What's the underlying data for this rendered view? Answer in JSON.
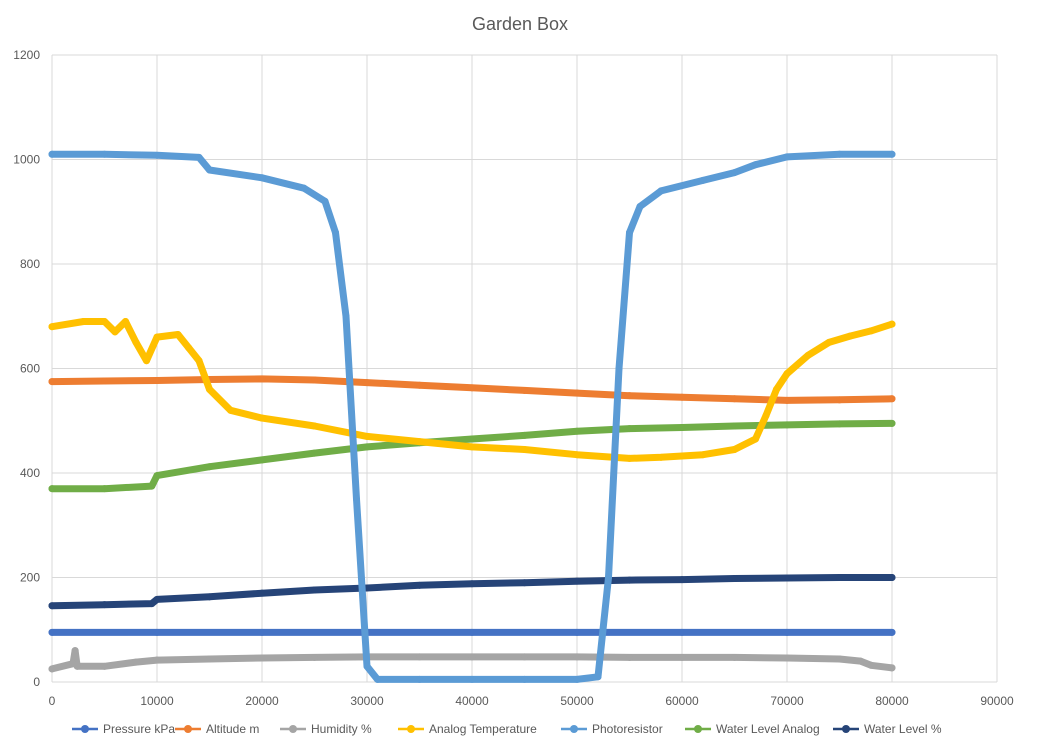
{
  "chart_data": {
    "type": "scatter",
    "title": "Garden Box",
    "xlabel": "",
    "ylabel": "",
    "xlim": [
      0,
      90000
    ],
    "ylim": [
      0,
      1200
    ],
    "x_ticks": [
      0,
      10000,
      20000,
      30000,
      40000,
      50000,
      60000,
      70000,
      80000,
      90000
    ],
    "y_ticks": [
      0,
      200,
      400,
      600,
      800,
      1000,
      1200
    ],
    "grid": true,
    "legend_position": "bottom",
    "series": [
      {
        "name": "Pressure kPa",
        "color": "#4472c4",
        "points": [
          [
            0,
            95
          ],
          [
            10000,
            95
          ],
          [
            20000,
            95
          ],
          [
            30000,
            95
          ],
          [
            40000,
            95
          ],
          [
            50000,
            95
          ],
          [
            60000,
            95
          ],
          [
            70000,
            95
          ],
          [
            80000,
            95
          ]
        ]
      },
      {
        "name": "Altitude m",
        "color": "#ed7d31",
        "points": [
          [
            0,
            575
          ],
          [
            5000,
            576
          ],
          [
            10000,
            577
          ],
          [
            15000,
            579
          ],
          [
            20000,
            580
          ],
          [
            25000,
            578
          ],
          [
            30000,
            573
          ],
          [
            35000,
            568
          ],
          [
            40000,
            563
          ],
          [
            45000,
            558
          ],
          [
            50000,
            553
          ],
          [
            55000,
            548
          ],
          [
            60000,
            545
          ],
          [
            65000,
            542
          ],
          [
            70000,
            539
          ],
          [
            75000,
            540
          ],
          [
            80000,
            542
          ]
        ]
      },
      {
        "name": "Humidity %",
        "color": "#a5a5a5",
        "points": [
          [
            0,
            25
          ],
          [
            2000,
            35
          ],
          [
            2200,
            60
          ],
          [
            2400,
            30
          ],
          [
            5000,
            30
          ],
          [
            8000,
            38
          ],
          [
            10000,
            42
          ],
          [
            15000,
            44
          ],
          [
            20000,
            46
          ],
          [
            25000,
            47
          ],
          [
            30000,
            48
          ],
          [
            35000,
            48
          ],
          [
            40000,
            48
          ],
          [
            45000,
            48
          ],
          [
            50000,
            48
          ],
          [
            55000,
            47
          ],
          [
            60000,
            47
          ],
          [
            65000,
            47
          ],
          [
            70000,
            46
          ],
          [
            75000,
            44
          ],
          [
            77000,
            40
          ],
          [
            78000,
            32
          ],
          [
            80000,
            27
          ]
        ]
      },
      {
        "name": "Analog Temperature",
        "color": "#ffc000",
        "points": [
          [
            0,
            680
          ],
          [
            3000,
            690
          ],
          [
            5000,
            690
          ],
          [
            6000,
            670
          ],
          [
            7000,
            690
          ],
          [
            8000,
            650
          ],
          [
            9000,
            615
          ],
          [
            10000,
            660
          ],
          [
            12000,
            665
          ],
          [
            13000,
            640
          ],
          [
            14000,
            615
          ],
          [
            15000,
            560
          ],
          [
            17000,
            520
          ],
          [
            20000,
            505
          ],
          [
            25000,
            490
          ],
          [
            30000,
            470
          ],
          [
            35000,
            460
          ],
          [
            40000,
            450
          ],
          [
            45000,
            445
          ],
          [
            50000,
            435
          ],
          [
            55000,
            428
          ],
          [
            58000,
            430
          ],
          [
            62000,
            435
          ],
          [
            65000,
            445
          ],
          [
            67000,
            465
          ],
          [
            68000,
            510
          ],
          [
            69000,
            560
          ],
          [
            70000,
            590
          ],
          [
            72000,
            625
          ],
          [
            74000,
            650
          ],
          [
            76000,
            662
          ],
          [
            78000,
            672
          ],
          [
            80000,
            685
          ]
        ]
      },
      {
        "name": "Photoresistor",
        "color": "#5b9bd5",
        "points": [
          [
            0,
            1010
          ],
          [
            5000,
            1010
          ],
          [
            10000,
            1008
          ],
          [
            14000,
            1004
          ],
          [
            15000,
            980
          ],
          [
            20000,
            965
          ],
          [
            24000,
            945
          ],
          [
            26000,
            920
          ],
          [
            27000,
            860
          ],
          [
            28000,
            700
          ],
          [
            29000,
            350
          ],
          [
            30000,
            30
          ],
          [
            31000,
            5
          ],
          [
            35000,
            5
          ],
          [
            40000,
            5
          ],
          [
            45000,
            5
          ],
          [
            50000,
            5
          ],
          [
            52000,
            10
          ],
          [
            53000,
            200
          ],
          [
            54000,
            600
          ],
          [
            55000,
            860
          ],
          [
            56000,
            910
          ],
          [
            58000,
            940
          ],
          [
            62000,
            960
          ],
          [
            65000,
            975
          ],
          [
            67000,
            990
          ],
          [
            70000,
            1005
          ],
          [
            75000,
            1010
          ],
          [
            80000,
            1010
          ]
        ]
      },
      {
        "name": "Water Level Analog",
        "color": "#70ad47",
        "points": [
          [
            0,
            370
          ],
          [
            5000,
            370
          ],
          [
            9500,
            375
          ],
          [
            10000,
            395
          ],
          [
            15000,
            412
          ],
          [
            20000,
            425
          ],
          [
            25000,
            438
          ],
          [
            30000,
            450
          ],
          [
            35000,
            458
          ],
          [
            40000,
            465
          ],
          [
            45000,
            472
          ],
          [
            50000,
            480
          ],
          [
            55000,
            485
          ],
          [
            60000,
            487
          ],
          [
            65000,
            490
          ],
          [
            70000,
            492
          ],
          [
            75000,
            494
          ],
          [
            80000,
            495
          ]
        ]
      },
      {
        "name": "Water Level %",
        "color": "#264478",
        "points": [
          [
            0,
            146
          ],
          [
            5000,
            148
          ],
          [
            9500,
            150
          ],
          [
            10000,
            158
          ],
          [
            15000,
            163
          ],
          [
            20000,
            170
          ],
          [
            25000,
            176
          ],
          [
            30000,
            180
          ],
          [
            35000,
            185
          ],
          [
            40000,
            188
          ],
          [
            45000,
            190
          ],
          [
            50000,
            193
          ],
          [
            55000,
            195
          ],
          [
            60000,
            196
          ],
          [
            65000,
            198
          ],
          [
            70000,
            199
          ],
          [
            75000,
            200
          ],
          [
            80000,
            200
          ]
        ]
      }
    ]
  }
}
